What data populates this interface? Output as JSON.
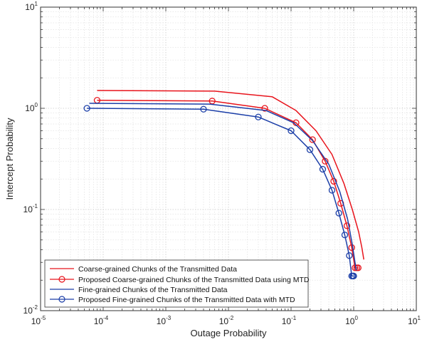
{
  "chart_data": {
    "type": "line",
    "xlabel": "Outage Probability",
    "ylabel": "Intercept Probability",
    "x_scale": "log",
    "y_scale": "log",
    "xlim": [
      1e-05,
      10
    ],
    "ylim": [
      0.01,
      10
    ],
    "x_ticks": [
      {
        "base": "10",
        "exp": "-5"
      },
      {
        "base": "10",
        "exp": "-4"
      },
      {
        "base": "10",
        "exp": "-3"
      },
      {
        "base": "10",
        "exp": "-2"
      },
      {
        "base": "10",
        "exp": "-1"
      },
      {
        "base": "10",
        "exp": "0"
      },
      {
        "base": "10",
        "exp": "1"
      }
    ],
    "y_ticks": [
      {
        "base": "10",
        "exp": "-2"
      },
      {
        "base": "10",
        "exp": "-1"
      },
      {
        "base": "10",
        "exp": "0"
      },
      {
        "base": "10",
        "exp": "1"
      }
    ],
    "grid": true,
    "legend_position": "bottom-left",
    "series": [
      {
        "name": "Coarse-grained Chunks of the Transmitted Data",
        "color": "#e8141c",
        "marker": "none",
        "x": [
          8e-05,
          0.006,
          0.05,
          0.12,
          0.25,
          0.45,
          0.7,
          0.95,
          1.2,
          1.35,
          1.45
        ],
        "y": [
          1.5,
          1.48,
          1.3,
          0.95,
          0.6,
          0.35,
          0.18,
          0.1,
          0.06,
          0.042,
          0.032
        ]
      },
      {
        "name": "Proposed Coarse-grained Chunks of the Transmitted Data using MTD",
        "color": "#e8141c",
        "marker": "circle",
        "x": [
          8e-05,
          0.0055,
          0.038,
          0.12,
          0.22,
          0.35,
          0.48,
          0.62,
          0.78,
          0.93,
          1.05,
          1.12,
          1.18
        ],
        "y": [
          1.2,
          1.18,
          1.0,
          0.72,
          0.49,
          0.3,
          0.19,
          0.115,
          0.069,
          0.042,
          0.0265,
          0.0265,
          0.0265
        ]
      },
      {
        "name": "Fine-grained Chunks of the Transmitted Data",
        "color": "#1c3fa8",
        "marker": "none",
        "x": [
          6e-05,
          0.005,
          0.04,
          0.11,
          0.22,
          0.4,
          0.6,
          0.8,
          0.95,
          1.05,
          1.1
        ],
        "y": [
          1.12,
          1.1,
          0.95,
          0.72,
          0.48,
          0.28,
          0.15,
          0.08,
          0.045,
          0.03,
          0.025
        ]
      },
      {
        "name": "Proposed Fine-grained Chunks of the Transmitted Data with MTD",
        "color": "#1c3fa8",
        "marker": "circle",
        "x": [
          5.5e-05,
          0.004,
          0.03,
          0.1,
          0.2,
          0.32,
          0.45,
          0.58,
          0.72,
          0.85,
          0.93,
          0.97,
          1.0
        ],
        "y": [
          1.0,
          0.98,
          0.82,
          0.6,
          0.39,
          0.25,
          0.155,
          0.092,
          0.056,
          0.035,
          0.022,
          0.022,
          0.022
        ]
      }
    ]
  }
}
